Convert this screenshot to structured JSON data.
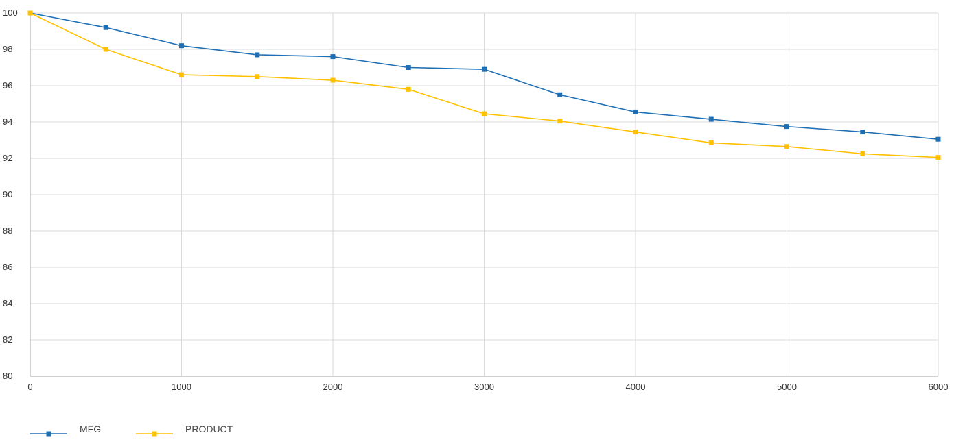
{
  "chart_data": {
    "type": "line",
    "title": "",
    "xlabel": "",
    "ylabel": "",
    "xlim": [
      0,
      6000
    ],
    "ylim": [
      80,
      100
    ],
    "x_ticks": [
      0,
      1000,
      2000,
      3000,
      4000,
      5000,
      6000
    ],
    "y_ticks": [
      80,
      82,
      84,
      86,
      88,
      90,
      92,
      94,
      96,
      98,
      100
    ],
    "grid": true,
    "legend_position": "bottom-left",
    "x": [
      0,
      500,
      1000,
      1500,
      2000,
      2500,
      3000,
      3500,
      4000,
      4500,
      5000,
      5500,
      6000
    ],
    "series": [
      {
        "name": "MFG",
        "color": "#1f6fb5",
        "marker": "square",
        "values": [
          100,
          99.2,
          98.2,
          97.7,
          97.6,
          97.0,
          96.9,
          95.5,
          94.55,
          94.15,
          93.75,
          93.45,
          93.05
        ]
      },
      {
        "name": "PRODUCT",
        "color": "#ffc000",
        "marker": "square",
        "values": [
          100,
          98.0,
          96.6,
          96.5,
          96.3,
          95.8,
          94.45,
          94.05,
          93.45,
          92.85,
          92.65,
          92.25,
          92.05
        ]
      }
    ]
  }
}
